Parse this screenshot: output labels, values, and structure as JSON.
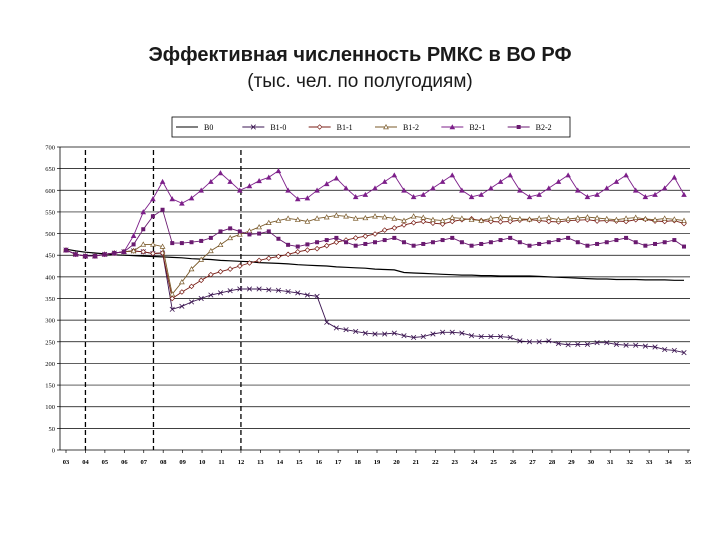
{
  "title": "Эффективная численность РМКС в ВО РФ",
  "subtitle": "(тыс. чел. по полугодиям)",
  "chart_data": {
    "type": "line",
    "title": "Эффективная численность РМКС в ВО РФ",
    "subtitle": "(тыс. чел. по полугодиям)",
    "ylim": [
      0,
      700
    ],
    "yticks": [
      0,
      50,
      100,
      150,
      200,
      250,
      300,
      350,
      400,
      450,
      500,
      550,
      600,
      650,
      700
    ],
    "grid": "horizontal",
    "legend_position": "top",
    "x_tick_labels": [
      "03",
      "04",
      "05",
      "06",
      "07",
      "08",
      "09",
      "10",
      "11",
      "12",
      "13",
      "14",
      "15",
      "16",
      "17",
      "18",
      "19",
      "20",
      "21",
      "22",
      "23",
      "24",
      "25",
      "26",
      "27",
      "28",
      "29",
      "30",
      "31",
      "32",
      "33",
      "34",
      "35"
    ],
    "vertical_markers": [
      "04",
      "07.5",
      "12"
    ],
    "series": [
      {
        "name": "B0",
        "color": "#000000",
        "marker": "none",
        "values": [
          464,
          460,
          457,
          455,
          453,
          451,
          450,
          449,
          448,
          447,
          446,
          445,
          444,
          442,
          441,
          440,
          438,
          437,
          436,
          435,
          433,
          432,
          431,
          430,
          428,
          427,
          426,
          425,
          423,
          422,
          421,
          420,
          418,
          417,
          416,
          410,
          409,
          408,
          407,
          406,
          405,
          404,
          404,
          403,
          403,
          402,
          402,
          402,
          402,
          401,
          400,
          399,
          398,
          397,
          396,
          395,
          395,
          394,
          394,
          394,
          393,
          393,
          393,
          392,
          392
        ]
      },
      {
        "name": "B1-0",
        "color": "#3a1450",
        "marker": "x",
        "values": [
          462,
          452,
          448,
          448,
          452,
          455,
          458,
          460,
          458,
          454,
          455,
          325,
          332,
          342,
          350,
          358,
          363,
          368,
          372,
          372,
          372,
          370,
          369,
          366,
          363,
          358,
          355,
          295,
          282,
          278,
          274,
          270,
          268,
          268,
          270,
          264,
          260,
          262,
          268,
          272,
          272,
          270,
          264,
          262,
          262,
          262,
          260,
          252,
          250,
          250,
          252,
          246,
          243,
          244,
          244,
          248,
          248,
          244,
          242,
          242,
          240,
          238,
          232,
          230,
          225
        ]
      },
      {
        "name": "B1-1",
        "color": "#7a1e16",
        "marker": "diamond",
        "values": [
          462,
          452,
          448,
          448,
          452,
          455,
          458,
          460,
          458,
          454,
          455,
          350,
          365,
          378,
          392,
          405,
          412,
          418,
          425,
          432,
          438,
          443,
          447,
          452,
          458,
          462,
          465,
          472,
          480,
          485,
          490,
          494,
          499,
          508,
          513,
          520,
          525,
          528,
          524,
          522,
          528,
          532,
          534,
          530,
          528,
          527,
          528,
          531,
          532,
          530,
          528,
          527,
          530,
          531,
          532,
          529,
          530,
          529,
          528,
          532,
          533,
          529,
          528,
          530,
          523
        ]
      },
      {
        "name": "B1-2",
        "color": "#7a5a2a",
        "marker": "triangle-open",
        "values": [
          462,
          452,
          448,
          448,
          452,
          455,
          458,
          460,
          475,
          475,
          470,
          360,
          388,
          418,
          440,
          460,
          474,
          490,
          498,
          506,
          515,
          525,
          530,
          535,
          532,
          528,
          535,
          538,
          542,
          540,
          535,
          536,
          540,
          538,
          535,
          530,
          540,
          537,
          532,
          530,
          537,
          535,
          532,
          530,
          535,
          538,
          536,
          534,
          533,
          535,
          537,
          532,
          534,
          536,
          538,
          536,
          534,
          532,
          535,
          537,
          534,
          532,
          535,
          533,
          530
        ]
      },
      {
        "name": "B2-1",
        "color": "#7d1f8a",
        "marker": "triangle",
        "values": [
          462,
          452,
          448,
          448,
          452,
          455,
          458,
          495,
          550,
          580,
          620,
          580,
          570,
          582,
          600,
          620,
          640,
          620,
          600,
          610,
          622,
          630,
          645,
          600,
          580,
          582,
          600,
          615,
          628,
          605,
          585,
          590,
          605,
          620,
          635,
          600,
          585,
          590,
          605,
          620,
          635,
          600,
          585,
          590,
          605,
          620,
          635,
          600,
          585,
          590,
          605,
          620,
          635,
          600,
          585,
          590,
          605,
          620,
          635,
          600,
          585,
          590,
          605,
          630,
          590
        ]
      },
      {
        "name": "B2-2",
        "color": "#6a1a70",
        "marker": "square",
        "values": [
          462,
          452,
          448,
          448,
          452,
          455,
          458,
          475,
          510,
          540,
          555,
          478,
          478,
          480,
          483,
          490,
          505,
          512,
          505,
          498,
          500,
          505,
          488,
          474,
          470,
          475,
          480,
          485,
          490,
          480,
          472,
          476,
          480,
          485,
          490,
          480,
          472,
          476,
          480,
          485,
          490,
          480,
          472,
          476,
          480,
          485,
          490,
          480,
          472,
          476,
          480,
          485,
          490,
          480,
          472,
          476,
          480,
          485,
          490,
          480,
          472,
          476,
          480,
          485,
          470
        ]
      }
    ]
  }
}
